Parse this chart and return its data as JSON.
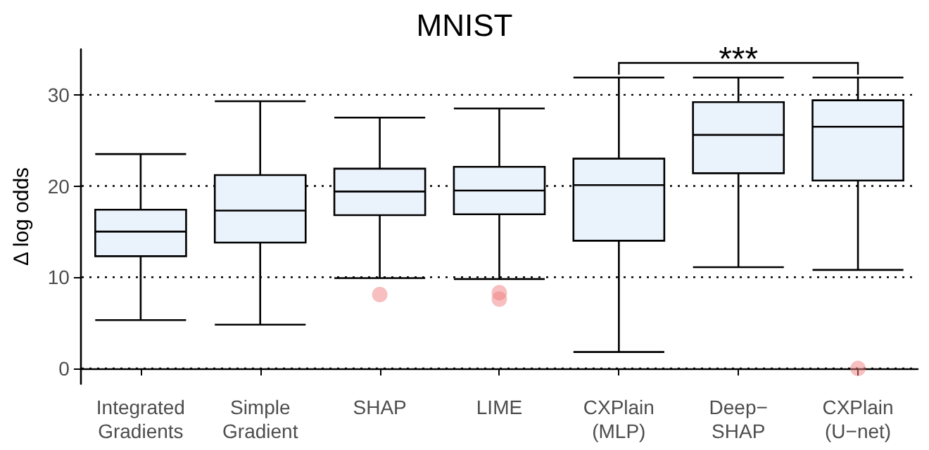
{
  "chart_data": {
    "type": "box",
    "title": "MNIST",
    "ylabel": "Δ log odds",
    "categories": [
      "Integrated\nGradients",
      "Simple\nGradient",
      "SHAP",
      "LIME",
      "CXPlain\n(MLP)",
      "Deep−\nSHAP",
      "CXPlain\n(U−net)"
    ],
    "boxes": [
      {
        "low": 5.3,
        "q1": 12.3,
        "median": 15,
        "q3": 17.4,
        "high": 23.5
      },
      {
        "low": 4.8,
        "q1": 13.8,
        "median": 17.3,
        "q3": 21.2,
        "high": 29.3
      },
      {
        "low": 9.9,
        "q1": 16.8,
        "median": 19.4,
        "q3": 21.9,
        "high": 27.5,
        "outliers": [
          8.1
        ]
      },
      {
        "low": 9.8,
        "q1": 16.9,
        "median": 19.5,
        "q3": 22.1,
        "high": 28.5,
        "outliers": [
          8.3,
          7.6
        ]
      },
      {
        "low": 1.8,
        "q1": 14,
        "median": 20.1,
        "q3": 23,
        "high": 31.9
      },
      {
        "low": 11.1,
        "q1": 21.4,
        "median": 25.6,
        "q3": 29.2,
        "high": 31.9
      },
      {
        "low": 10.8,
        "q1": 20.6,
        "median": 26.5,
        "q3": 29.4,
        "high": 31.9,
        "outliers": [
          0
        ]
      }
    ],
    "color": "#eaf2fb",
    "ylim": [
      -1.7,
      35
    ],
    "yticks": [
      0,
      10,
      20,
      30
    ],
    "grid": "y",
    "annotations": [
      "***"
    ]
  }
}
